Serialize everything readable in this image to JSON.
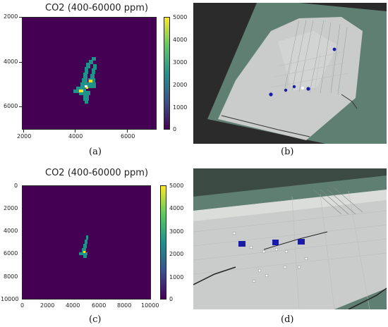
{
  "panels": {
    "a": {
      "title": "CO2 (400-60000 ppm)",
      "caption": "(a)",
      "x_ticks": [
        "2000",
        "4000",
        "6000"
      ],
      "y_ticks": [
        "2000",
        "4000",
        "6000"
      ],
      "cbar_ticks": [
        "5000",
        "4000",
        "3000",
        "2000",
        "1000",
        "0"
      ]
    },
    "b": {
      "caption": "(b)"
    },
    "c": {
      "title": "CO2 (400-60000 ppm)",
      "caption": "(c)",
      "x_ticks": [
        "0",
        "2000",
        "4000",
        "6000",
        "8000",
        "10000"
      ],
      "y_ticks": [
        "0",
        "2000",
        "4000",
        "6000",
        "8000",
        "10000"
      ],
      "cbar_ticks": [
        "5000",
        "4000",
        "3000",
        "2000",
        "1000",
        "0"
      ]
    },
    "d": {
      "caption": "(d)"
    }
  },
  "colors": {
    "viridis_dark": "#440154",
    "viridis_teal": "#21918c",
    "viridis_yellow": "#fde725",
    "floor_grey": "#c9ccca",
    "wall_green": "#5f7f72",
    "marker_blue": "#1a1aa8"
  }
}
